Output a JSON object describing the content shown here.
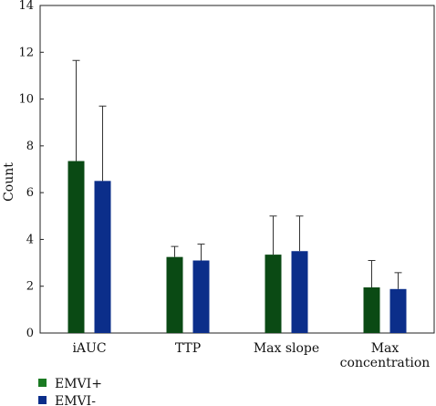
{
  "chart_data": {
    "type": "bar",
    "title": "",
    "xlabel": "",
    "ylabel": "Count",
    "ylim": [
      0,
      14
    ],
    "yticks": [
      0,
      2,
      4,
      6,
      8,
      10,
      12,
      14
    ],
    "grid": false,
    "legend_position": "bottom-left",
    "categories": [
      [
        "iAUC"
      ],
      [
        "TTP"
      ],
      [
        "Max slope"
      ],
      [
        "Max",
        "concentration"
      ]
    ],
    "series": [
      {
        "name": "EMVI+",
        "color": "#0a4a14",
        "legend_color": "#1a7a22",
        "values": [
          7.35,
          3.25,
          3.35,
          1.95
        ],
        "error": [
          4.3,
          0.45,
          1.65,
          1.15
        ]
      },
      {
        "name": "EMVI-",
        "color": "#0b2e8a",
        "legend_color": "#0b2e8a",
        "values": [
          6.5,
          3.1,
          3.5,
          1.88
        ],
        "error": [
          3.2,
          0.7,
          1.5,
          0.7
        ]
      }
    ]
  }
}
